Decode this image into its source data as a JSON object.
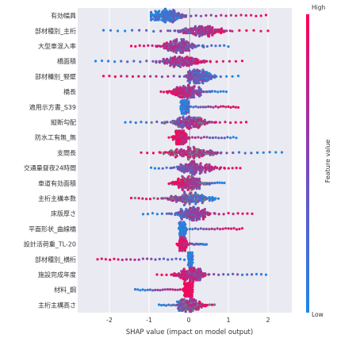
{
  "chart_data": {
    "type": "scatter",
    "subtype": "shap-beeswarm-summary",
    "xlabel": "SHAP value (impact on model output)",
    "xlim": [
      -2.8,
      2.6
    ],
    "x_ticks": [
      -2,
      -1,
      0,
      1,
      2
    ],
    "grid": true,
    "background": "#eaeaf2",
    "colorbar": {
      "label": "Feature value",
      "high_label": "High",
      "low_label": "Low",
      "low_color": "#1e88e5",
      "high_color": "#ff0052"
    },
    "features": [
      {
        "name": "有効幅員",
        "min": -0.95,
        "max": 1.95,
        "center": -0.55,
        "spread": 0.42,
        "low_side": "left",
        "gray": false
      },
      {
        "name": "部材種別_主桁",
        "min": -2.15,
        "max": 2.0,
        "center": 0.35,
        "spread": 0.5,
        "low_side": "left",
        "gray": false
      },
      {
        "name": "大型車混入率",
        "min": -1.45,
        "max": 1.0,
        "center": -0.25,
        "spread": 0.45,
        "low_side": "right",
        "gray": false
      },
      {
        "name": "橋面積",
        "min": -2.35,
        "max": 1.35,
        "center": -0.2,
        "spread": 0.5,
        "low_side": "left",
        "gray": false
      },
      {
        "name": "部材種別_竪壁",
        "min": -2.15,
        "max": 1.25,
        "center": 0.25,
        "spread": 0.35,
        "low_side": "right",
        "gray": false
      },
      {
        "name": "橋長",
        "min": -0.7,
        "max": 0.95,
        "center": -0.05,
        "spread": 0.4,
        "low_side": "right",
        "gray": false
      },
      {
        "name": "適用示方書_S39",
        "min": -0.2,
        "max": 1.25,
        "center": -0.1,
        "spread": 0.08,
        "low_side": "left",
        "gray": false
      },
      {
        "name": "縦断勾配",
        "min": -1.6,
        "max": 1.45,
        "center": 0.05,
        "spread": 0.5,
        "low_side": "left",
        "gray": true
      },
      {
        "name": "防水工有無_無",
        "min": -0.5,
        "max": 1.2,
        "center": -0.2,
        "spread": 0.15,
        "low_side": "right",
        "gray": false
      },
      {
        "name": "支間長",
        "min": -1.2,
        "max": 2.35,
        "center": 0.1,
        "spread": 0.55,
        "low_side": "right",
        "gray": true
      },
      {
        "name": "交通量昼夜24時間",
        "min": -0.95,
        "max": 1.3,
        "center": 0.2,
        "spread": 0.45,
        "low_side": "left",
        "gray": false
      },
      {
        "name": "車道有効面積",
        "min": -0.5,
        "max": 0.9,
        "center": 0.0,
        "spread": 0.35,
        "low_side": "right",
        "gray": true
      },
      {
        "name": "主桁主構本数",
        "min": -1.45,
        "max": 0.75,
        "center": 0.05,
        "spread": 0.45,
        "low_side": "right",
        "gray": true
      },
      {
        "name": "床版厚さ",
        "min": -1.15,
        "max": 1.6,
        "center": 0.1,
        "spread": 0.4,
        "low_side": "left",
        "gray": false
      },
      {
        "name": "平面形状_曲線橋",
        "min": -0.25,
        "max": 1.35,
        "center": -0.15,
        "spread": 0.08,
        "low_side": "left",
        "gray": false
      },
      {
        "name": "設計活荷重_TL-20",
        "min": -0.3,
        "max": 0.45,
        "center": -0.15,
        "spread": 0.08,
        "low_side": "right",
        "gray": false
      },
      {
        "name": "部材種別_横桁",
        "min": -2.3,
        "max": 0.1,
        "center": 0.05,
        "spread": 0.06,
        "low_side": "right",
        "gray": false
      },
      {
        "name": "施設完成年度",
        "min": -0.8,
        "max": 1.95,
        "center": 0.05,
        "spread": 0.35,
        "low_side": "right",
        "gray": false
      },
      {
        "name": "材料_鋼",
        "min": -1.35,
        "max": 0.1,
        "center": 0.0,
        "spread": 0.1,
        "low_side": "left",
        "gray": false
      },
      {
        "name": "主桁主構高さ",
        "min": -0.75,
        "max": 0.65,
        "center": 0.0,
        "spread": 0.3,
        "low_side": "left",
        "gray": true
      }
    ]
  }
}
